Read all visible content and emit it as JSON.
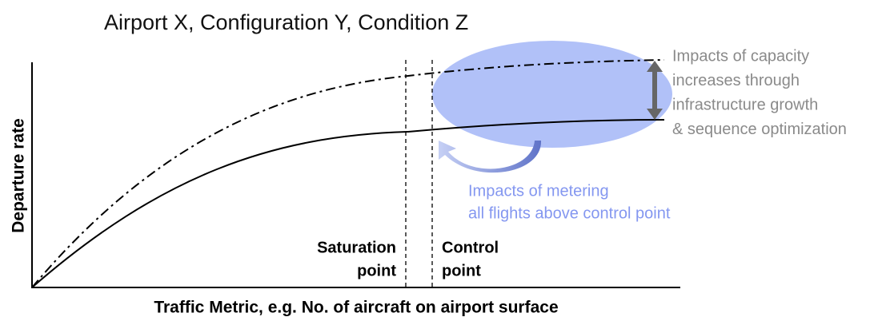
{
  "title": "Airport X, Configuration Y, Condition Z",
  "y_axis_label": "Departure rate",
  "x_axis_label": "Traffic Metric, e.g. No. of aircraft on airport surface",
  "saturation_label": [
    "Saturation",
    "point"
  ],
  "control_label": [
    "Control",
    "point"
  ],
  "capacity_note": [
    "Impacts of capacity",
    "increases through",
    "infrastructure growth",
    "& sequence optimization"
  ],
  "metering_note": [
    "Impacts of metering",
    "all flights above control point"
  ]
}
